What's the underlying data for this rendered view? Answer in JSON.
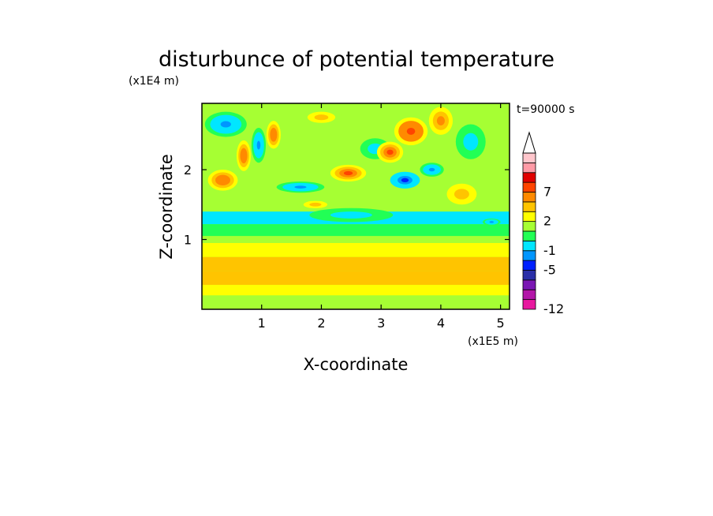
{
  "chart_data": {
    "type": "heatmap",
    "title": "disturbunce of potential temperature",
    "xlabel": "X-coordinate",
    "ylabel": "Z-coordinate",
    "x_unit": "(x1E5 m)",
    "y_unit": "(x1E4 m)",
    "time_label": "t=90000 s",
    "xlim": [
      0,
      5.15
    ],
    "ylim": [
      0,
      2.95
    ],
    "x_ticks": [
      1,
      2,
      3,
      4,
      5
    ],
    "y_ticks": [
      1,
      2
    ],
    "colorbar": {
      "levels": [
        -12,
        -11,
        -9,
        -7,
        -5,
        -3,
        -1,
        0,
        1,
        2,
        3,
        5,
        7,
        9,
        11
      ],
      "labels": [
        "-12",
        "-5",
        "-1",
        "2",
        "7"
      ],
      "label_values": [
        -12,
        -5,
        -1,
        2,
        7
      ],
      "colors": [
        "#e8199f",
        "#b316a8",
        "#7a17b3",
        "#2a2fa8",
        "#0020ff",
        "#0096ff",
        "#00e6ff",
        "#22ff55",
        "#a6ff33",
        "#ffff00",
        "#ffc400",
        "#ff8a00",
        "#ff4400",
        "#e00000",
        "#ff9aa6",
        "#ffc6cc"
      ],
      "extend": "max"
    },
    "background_value": 0.3,
    "features": [
      {
        "kind": "band",
        "x0": 0,
        "x1": 5.15,
        "z0": 0.0,
        "z1": 0.2,
        "value": 0.6
      },
      {
        "kind": "band",
        "x0": 0,
        "x1": 5.15,
        "z0": 0.2,
        "z1": 0.35,
        "value": 1.5
      },
      {
        "kind": "band",
        "x0": 0,
        "x1": 5.15,
        "z0": 0.35,
        "z1": 0.55,
        "value": 2.5
      },
      {
        "kind": "band",
        "x0": 0,
        "x1": 5.15,
        "z0": 0.55,
        "z1": 0.75,
        "value": 2.1
      },
      {
        "kind": "band",
        "x0": 0,
        "x1": 5.15,
        "z0": 0.75,
        "z1": 0.95,
        "value": 1.4
      },
      {
        "kind": "band",
        "x0": 0,
        "x1": 5.15,
        "z0": 0.95,
        "z1": 1.05,
        "value": 0.6
      },
      {
        "kind": "band",
        "x0": 0,
        "x1": 5.15,
        "z0": 1.05,
        "z1": 1.22,
        "value": -0.3
      },
      {
        "kind": "band",
        "x0": 0,
        "x1": 5.15,
        "z0": 1.22,
        "z1": 1.4,
        "value": -1.5
      },
      {
        "kind": "blob",
        "x": 0.4,
        "z": 2.65,
        "rx": 0.35,
        "rz": 0.18,
        "value": -4
      },
      {
        "kind": "blob",
        "x": 0.95,
        "z": 2.35,
        "rx": 0.12,
        "rz": 0.25,
        "value": -4
      },
      {
        "kind": "blob",
        "x": 0.7,
        "z": 2.2,
        "rx": 0.12,
        "rz": 0.22,
        "value": 4
      },
      {
        "kind": "blob",
        "x": 1.2,
        "z": 2.5,
        "rx": 0.12,
        "rz": 0.2,
        "value": 4
      },
      {
        "kind": "blob",
        "x": 1.65,
        "z": 1.75,
        "rx": 0.4,
        "rz": 0.08,
        "value": -4
      },
      {
        "kind": "blob",
        "x": 1.9,
        "z": 1.5,
        "rx": 0.3,
        "rz": 0.08,
        "value": 2.5
      },
      {
        "kind": "blob",
        "x": 2.45,
        "z": 1.95,
        "rx": 0.3,
        "rz": 0.12,
        "value": 5
      },
      {
        "kind": "blob",
        "x": 2.5,
        "z": 1.35,
        "rx": 0.7,
        "rz": 0.1,
        "value": -1.6
      },
      {
        "kind": "blob",
        "x": 2.9,
        "z": 2.3,
        "rx": 0.25,
        "rz": 0.15,
        "value": -2
      },
      {
        "kind": "blob",
        "x": 3.15,
        "z": 2.25,
        "rx": 0.22,
        "rz": 0.15,
        "value": 5
      },
      {
        "kind": "blob",
        "x": 3.5,
        "z": 2.55,
        "rx": 0.28,
        "rz": 0.2,
        "value": 6.5
      },
      {
        "kind": "blob",
        "x": 3.4,
        "z": 1.85,
        "rx": 0.25,
        "rz": 0.12,
        "value": -6
      },
      {
        "kind": "blob",
        "x": 3.85,
        "z": 2.0,
        "rx": 0.2,
        "rz": 0.1,
        "value": -4
      },
      {
        "kind": "blob",
        "x": 4.0,
        "z": 2.7,
        "rx": 0.2,
        "rz": 0.2,
        "value": 3
      },
      {
        "kind": "blob",
        "x": 4.5,
        "z": 2.4,
        "rx": 0.25,
        "rz": 0.25,
        "value": -1.5
      },
      {
        "kind": "blob",
        "x": 4.35,
        "z": 1.65,
        "rx": 0.25,
        "rz": 0.15,
        "value": 2
      },
      {
        "kind": "blob",
        "x": 4.85,
        "z": 1.25,
        "rx": 0.15,
        "rz": 0.05,
        "value": -4
      },
      {
        "kind": "blob",
        "x": 0.35,
        "z": 1.85,
        "rx": 0.25,
        "rz": 0.15,
        "value": 4
      },
      {
        "kind": "blob",
        "x": 2.0,
        "z": 2.75,
        "rx": 0.35,
        "rz": 0.12,
        "value": 2.5
      }
    ]
  }
}
